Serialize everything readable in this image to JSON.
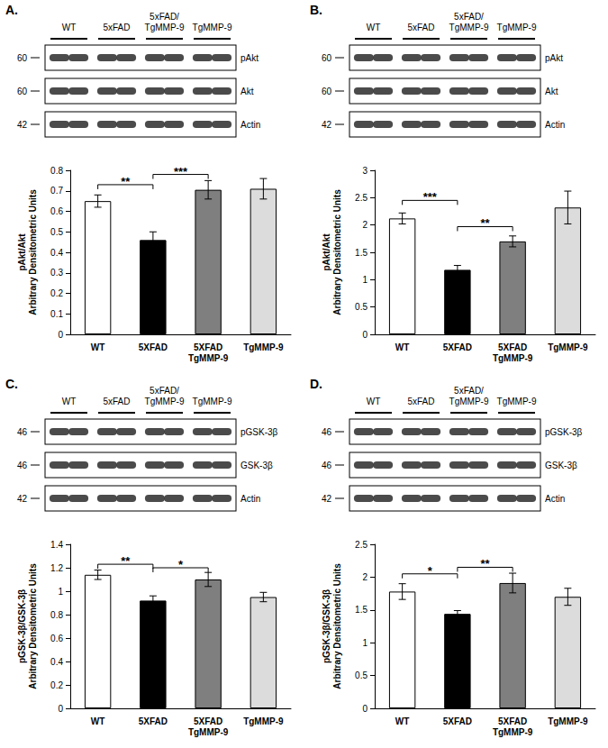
{
  "chart_data": [
    {
      "type": "bar",
      "panel": "A.",
      "blot": {
        "lanes": [
          "WT",
          "5xFAD",
          "5xFAD/\nTgMMP-9",
          "TgMMP-9"
        ],
        "rows": [
          {
            "label": "pAkt",
            "mw": 60
          },
          {
            "label": "Akt",
            "mw": 60
          },
          {
            "label": "Actin",
            "mw": 42
          }
        ]
      },
      "y_label": "pAkt/Akt\nArbitrary Densitometric Units",
      "categories": [
        "WT",
        "5XFAD",
        "5XFAD\nTgMMP-9",
        "TgMMP-9"
      ],
      "values": [
        0.65,
        0.46,
        0.705,
        0.71
      ],
      "errors": [
        0.03,
        0.04,
        0.045,
        0.05
      ],
      "colors": [
        "#ffffff",
        "#000000",
        "#7f7f7f",
        "#dcdcdc"
      ],
      "ylim": [
        0,
        0.8
      ],
      "yticks": [
        0,
        0.1,
        0.2,
        0.3,
        0.4,
        0.5,
        0.6,
        0.7,
        0.8
      ],
      "grid": false,
      "annotations": [
        {
          "text": "**",
          "from": "WT",
          "to": "5XFAD",
          "y": 0.73
        },
        {
          "text": "***",
          "from": "5XFAD",
          "to": "5XFAD\nTgMMP-9",
          "y": 0.78
        }
      ]
    },
    {
      "type": "bar",
      "panel": "B.",
      "blot": {
        "lanes": [
          "WT",
          "5xFAD",
          "5xFAD/\nTgMMP-9",
          "TgMMP-9"
        ],
        "rows": [
          {
            "label": "pAkt",
            "mw": 60
          },
          {
            "label": "Akt",
            "mw": 60
          },
          {
            "label": "Actin",
            "mw": 42
          }
        ]
      },
      "y_label": "pAkt/Akt\nArbitrary Densitometric Units",
      "categories": [
        "WT",
        "5XFAD",
        "5XFAD\nTgMMP-9",
        "TgMMP-9"
      ],
      "values": [
        2.12,
        1.18,
        1.7,
        2.32
      ],
      "errors": [
        0.1,
        0.08,
        0.1,
        0.3
      ],
      "colors": [
        "#ffffff",
        "#000000",
        "#7f7f7f",
        "#dcdcdc"
      ],
      "ylim": [
        0,
        3
      ],
      "yticks": [
        0,
        0.5,
        1,
        1.5,
        2,
        2.5,
        3
      ],
      "grid": false,
      "annotations": [
        {
          "text": "***",
          "from": "WT",
          "to": "5XFAD",
          "y": 2.45
        },
        {
          "text": "**",
          "from": "5XFAD",
          "to": "5XFAD\nTgMMP-9",
          "y": 1.97
        }
      ]
    },
    {
      "type": "bar",
      "panel": "C.",
      "blot": {
        "lanes": [
          "WT",
          "5xFAD",
          "5xFAD/\nTgMMP-9",
          "TgMMP-9"
        ],
        "rows": [
          {
            "label": "pGSK-3β",
            "mw": 46
          },
          {
            "label": "GSK-3β",
            "mw": 46
          },
          {
            "label": "Actin",
            "mw": 42
          }
        ]
      },
      "y_label": "pGSK-3β/GSK-3β\nArbitrary Densitometric Units",
      "categories": [
        "WT",
        "5XFAD",
        "5XFAD\nTgMMP-9",
        "TgMMP-9"
      ],
      "values": [
        1.14,
        0.92,
        1.1,
        0.95
      ],
      "errors": [
        0.04,
        0.04,
        0.06,
        0.04
      ],
      "colors": [
        "#ffffff",
        "#000000",
        "#7f7f7f",
        "#dcdcdc"
      ],
      "ylim": [
        0,
        1.4
      ],
      "yticks": [
        0,
        0.2,
        0.4,
        0.6,
        0.8,
        1,
        1.2,
        1.4
      ],
      "grid": false,
      "annotations": [
        {
          "text": "**",
          "from": "WT",
          "to": "5XFAD",
          "y": 1.23
        },
        {
          "text": "*",
          "from": "5XFAD",
          "to": "5XFAD\nTgMMP-9",
          "y": 1.2
        }
      ]
    },
    {
      "type": "bar",
      "panel": "D.",
      "blot": {
        "lanes": [
          "WT",
          "5xFAD",
          "5xFAD/\nTgMMP-9",
          "TgMMP-9"
        ],
        "rows": [
          {
            "label": "pGSK-3β",
            "mw": 46
          },
          {
            "label": "GSK-3β",
            "mw": 46
          },
          {
            "label": "Actin",
            "mw": 42
          }
        ]
      },
      "y_label": "pGSK-3β/GSK-3β\nArbitrary Densitometric Units",
      "categories": [
        "WT",
        "5XFAD",
        "5XFAD\nTgMMP-9",
        "TgMMP-9"
      ],
      "values": [
        1.78,
        1.44,
        1.91,
        1.7
      ],
      "errors": [
        0.12,
        0.05,
        0.15,
        0.13
      ],
      "colors": [
        "#ffffff",
        "#000000",
        "#7f7f7f",
        "#dcdcdc"
      ],
      "ylim": [
        0,
        2.5
      ],
      "yticks": [
        0,
        0.5,
        1,
        1.5,
        2,
        2.5
      ],
      "grid": false,
      "annotations": [
        {
          "text": "*",
          "from": "WT",
          "to": "5XFAD",
          "y": 2.05
        },
        {
          "text": "**",
          "from": "5XFAD",
          "to": "5XFAD\nTgMMP-9",
          "y": 2.15
        }
      ]
    }
  ]
}
